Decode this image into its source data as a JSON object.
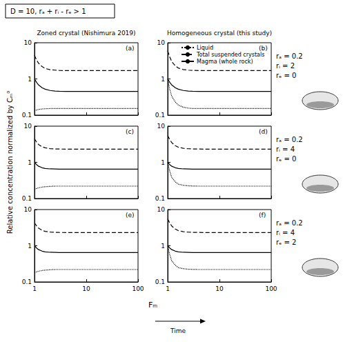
{
  "figure": {
    "box": "D = 10, rₐ + rᵢ - rₑ > 1",
    "columns": [
      "Zoned crystal (Nishimura 2019)",
      "Homogeneous crystal (this study)"
    ],
    "y_title": "Relative concentration normalized by Cₘ⁰",
    "x_title": "Fₘ",
    "time_label": "Time",
    "rows": [
      [
        "rₐ = 0.2",
        "rᵢ = 2",
        "rₑ = 0"
      ],
      [
        "rₐ = 0.2",
        "rᵢ = 4",
        "rₑ = 0"
      ],
      [
        "rₐ = 0.2",
        "rᵢ = 4",
        "rₑ = 2"
      ]
    ]
  },
  "chart_data": [
    {
      "type": "line",
      "title": "(a)",
      "log": true,
      "grid": false,
      "tick_labels": "y",
      "xlim": [
        1,
        100
      ],
      "xticks": [
        1,
        10,
        100
      ],
      "ylim": [
        0.1,
        10
      ],
      "yticks": [
        0.1,
        1,
        10
      ],
      "x": [
        1,
        1.1,
        1.2,
        1.4,
        1.6,
        2,
        2.5,
        3,
        4,
        5,
        7,
        10,
        20,
        50,
        100
      ],
      "series": [
        {
          "name": "Liquid",
          "color": "#000000",
          "line_style": "dotted",
          "values": [
            0.13,
            0.138,
            0.143,
            0.148,
            0.15,
            0.152,
            0.152,
            0.152,
            0.152,
            0.152,
            0.152,
            0.152,
            0.152,
            0.152,
            0.152
          ]
        },
        {
          "name": "Total suspended crystals",
          "color": "#000000",
          "line_style": "dashed",
          "values": [
            4.5,
            3.3,
            2.7,
            2.2,
            1.95,
            1.8,
            1.75,
            1.72,
            1.7,
            1.7,
            1.7,
            1.7,
            1.7,
            1.7,
            1.7
          ]
        },
        {
          "name": "Magma (whole rock)",
          "color": "#000000",
          "line_style": "solid",
          "values": [
            1,
            0.8,
            0.68,
            0.57,
            0.52,
            0.48,
            0.46,
            0.455,
            0.45,
            0.45,
            0.45,
            0.45,
            0.45,
            0.45,
            0.45
          ]
        }
      ]
    },
    {
      "type": "line",
      "title": "(b)",
      "log": true,
      "grid": false,
      "tick_labels": "y",
      "legend": "top",
      "xlim": [
        1,
        100
      ],
      "xticks": [
        1,
        10,
        100
      ],
      "ylim": [
        0.1,
        10
      ],
      "yticks": [
        0.1,
        1,
        10
      ],
      "x": [
        1,
        1.1,
        1.2,
        1.4,
        1.6,
        2,
        2.5,
        3,
        4,
        5,
        7,
        10,
        20,
        50,
        100
      ],
      "series": [
        {
          "name": "Liquid",
          "color": "#000000",
          "line_style": "dotted",
          "values": [
            1,
            0.5,
            0.33,
            0.23,
            0.19,
            0.165,
            0.156,
            0.153,
            0.152,
            0.152,
            0.152,
            0.152,
            0.152,
            0.152,
            0.152
          ]
        },
        {
          "name": "Total suspended crystals",
          "color": "#000000",
          "line_style": "dashed",
          "values": [
            6,
            4,
            3,
            2.3,
            2,
            1.82,
            1.75,
            1.72,
            1.7,
            1.7,
            1.7,
            1.7,
            1.7,
            1.7,
            1.7
          ]
        },
        {
          "name": "Magma (whole rock)",
          "color": "#000000",
          "line_style": "solid",
          "values": [
            1,
            0.8,
            0.68,
            0.57,
            0.52,
            0.48,
            0.46,
            0.455,
            0.45,
            0.45,
            0.45,
            0.45,
            0.45,
            0.45,
            0.45
          ]
        }
      ]
    },
    {
      "type": "line",
      "title": "(c)",
      "log": true,
      "grid": false,
      "tick_labels": "y",
      "xlim": [
        1,
        100
      ],
      "xticks": [
        1,
        10,
        100
      ],
      "ylim": [
        0.1,
        10
      ],
      "yticks": [
        0.1,
        1,
        10
      ],
      "x": [
        1,
        1.1,
        1.2,
        1.4,
        1.6,
        2,
        2.5,
        3,
        4,
        5,
        7,
        10,
        20,
        50,
        100
      ],
      "series": [
        {
          "name": "Liquid",
          "color": "#000000",
          "line_style": "dotted",
          "values": [
            0.18,
            0.19,
            0.198,
            0.207,
            0.212,
            0.217,
            0.22,
            0.22,
            0.22,
            0.22,
            0.22,
            0.22,
            0.22,
            0.22,
            0.22
          ]
        },
        {
          "name": "Total suspended crystals",
          "color": "#000000",
          "line_style": "dashed",
          "values": [
            4.5,
            3.6,
            3.1,
            2.7,
            2.52,
            2.4,
            2.35,
            2.33,
            2.32,
            2.32,
            2.32,
            2.32,
            2.32,
            2.32,
            2.32
          ]
        },
        {
          "name": "Magma (whole rock)",
          "color": "#000000",
          "line_style": "solid",
          "values": [
            1,
            0.86,
            0.78,
            0.71,
            0.68,
            0.66,
            0.655,
            0.65,
            0.65,
            0.65,
            0.65,
            0.65,
            0.65,
            0.65,
            0.65
          ]
        }
      ]
    },
    {
      "type": "line",
      "title": "(d)",
      "log": true,
      "grid": false,
      "tick_labels": "y",
      "xlim": [
        1,
        100
      ],
      "xticks": [
        1,
        10,
        100
      ],
      "ylim": [
        0.1,
        10
      ],
      "yticks": [
        0.1,
        1,
        10
      ],
      "x": [
        1,
        1.1,
        1.2,
        1.4,
        1.6,
        2,
        2.5,
        3,
        4,
        5,
        7,
        10,
        20,
        50,
        100
      ],
      "series": [
        {
          "name": "Liquid",
          "color": "#000000",
          "line_style": "dotted",
          "values": [
            1,
            0.55,
            0.38,
            0.29,
            0.25,
            0.232,
            0.225,
            0.222,
            0.22,
            0.22,
            0.22,
            0.22,
            0.22,
            0.22,
            0.22
          ]
        },
        {
          "name": "Total suspended crystals",
          "color": "#000000",
          "line_style": "dashed",
          "values": [
            5.5,
            4.2,
            3.5,
            2.9,
            2.62,
            2.45,
            2.38,
            2.35,
            2.33,
            2.32,
            2.32,
            2.32,
            2.32,
            2.32,
            2.32
          ]
        },
        {
          "name": "Magma (whole rock)",
          "color": "#000000",
          "line_style": "solid",
          "values": [
            1,
            0.86,
            0.78,
            0.71,
            0.68,
            0.66,
            0.655,
            0.65,
            0.65,
            0.65,
            0.65,
            0.65,
            0.65,
            0.65,
            0.65
          ]
        }
      ]
    },
    {
      "type": "line",
      "title": "(e)",
      "log": true,
      "grid": false,
      "xlim": [
        1,
        100
      ],
      "xticks": [
        1,
        10,
        100
      ],
      "ylim": [
        0.1,
        10
      ],
      "yticks": [
        0.1,
        1,
        10
      ],
      "x": [
        1,
        1.1,
        1.2,
        1.4,
        1.6,
        2,
        2.5,
        3,
        4,
        5,
        7,
        10,
        20,
        50,
        100
      ],
      "series": [
        {
          "name": "Liquid",
          "color": "#000000",
          "line_style": "dotted",
          "values": [
            0.18,
            0.19,
            0.198,
            0.207,
            0.212,
            0.217,
            0.22,
            0.22,
            0.22,
            0.22,
            0.22,
            0.22,
            0.22,
            0.22,
            0.22
          ]
        },
        {
          "name": "Total suspended crystals",
          "color": "#000000",
          "line_style": "dashed",
          "values": [
            4.3,
            3.5,
            3.05,
            2.68,
            2.5,
            2.4,
            2.35,
            2.33,
            2.32,
            2.32,
            2.32,
            2.32,
            2.32,
            2.32,
            2.32
          ]
        },
        {
          "name": "Magma (whole rock)",
          "color": "#000000",
          "line_style": "solid",
          "values": [
            1,
            0.86,
            0.78,
            0.71,
            0.68,
            0.66,
            0.655,
            0.65,
            0.65,
            0.65,
            0.65,
            0.65,
            0.65,
            0.65,
            0.65
          ]
        }
      ]
    },
    {
      "type": "line",
      "title": "(f)",
      "log": true,
      "grid": false,
      "xlim": [
        1,
        100
      ],
      "xticks": [
        1,
        10,
        100
      ],
      "ylim": [
        0.1,
        10
      ],
      "yticks": [
        0.1,
        1,
        10
      ],
      "x": [
        1,
        1.1,
        1.2,
        1.4,
        1.6,
        2,
        2.5,
        3,
        4,
        5,
        7,
        10,
        20,
        50,
        100
      ],
      "series": [
        {
          "name": "Liquid",
          "color": "#000000",
          "line_style": "dotted",
          "values": [
            1,
            0.55,
            0.38,
            0.29,
            0.25,
            0.232,
            0.225,
            0.222,
            0.22,
            0.22,
            0.22,
            0.22,
            0.22,
            0.22,
            0.22
          ]
        },
        {
          "name": "Total suspended crystals",
          "color": "#000000",
          "line_style": "dashed",
          "values": [
            5.5,
            4.2,
            3.5,
            2.9,
            2.62,
            2.45,
            2.38,
            2.35,
            2.33,
            2.32,
            2.32,
            2.32,
            2.32,
            2.32,
            2.32
          ]
        },
        {
          "name": "Magma (whole rock)",
          "color": "#000000",
          "line_style": "solid",
          "values": [
            1,
            0.86,
            0.78,
            0.71,
            0.68,
            0.66,
            0.655,
            0.65,
            0.65,
            0.65,
            0.65,
            0.65,
            0.65,
            0.65,
            0.65
          ]
        }
      ]
    }
  ]
}
